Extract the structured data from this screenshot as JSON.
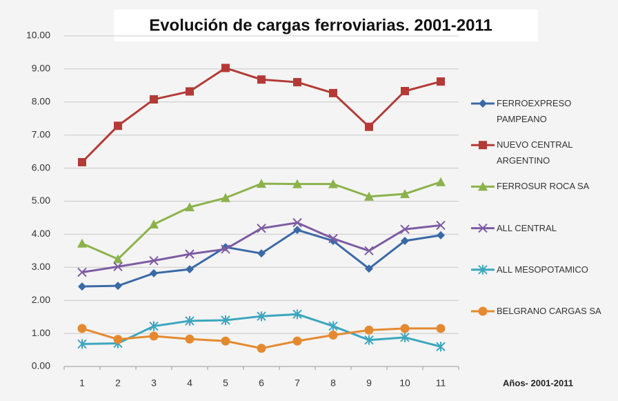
{
  "chart_data": {
    "type": "line",
    "title": "Evolución de cargas ferroviarias. 2001-2011",
    "x_label": "Años- 2001-2011",
    "categories": [
      "1",
      "2",
      "3",
      "4",
      "5",
      "6",
      "7",
      "8",
      "9",
      "10",
      "11"
    ],
    "ylim": [
      0,
      10
    ],
    "yticks": [
      {
        "value": 0,
        "label": "0.00"
      },
      {
        "value": 1,
        "label": "1.00"
      },
      {
        "value": 2,
        "label": "2.00"
      },
      {
        "value": 3,
        "label": "3.00"
      },
      {
        "value": 4,
        "label": "4.00"
      },
      {
        "value": 5,
        "label": "5.00"
      },
      {
        "value": 6,
        "label": "6.00"
      },
      {
        "value": 7,
        "label": "7.00"
      },
      {
        "value": 8,
        "label": "8.00"
      },
      {
        "value": 9,
        "label": "9.00"
      },
      {
        "value": 10,
        "label": "10.00"
      }
    ],
    "grid": true,
    "legend": "right",
    "series": [
      {
        "name": "FERROEXPRESO PAMPEANO",
        "color": "#3b69a6",
        "marker": "diamond",
        "values": [
          2.42,
          2.44,
          2.82,
          2.94,
          3.61,
          3.42,
          4.13,
          3.8,
          2.96,
          3.8,
          3.97
        ]
      },
      {
        "name": "NUEVO CENTRAL ARGENTINO",
        "color": "#b33a36",
        "marker": "square",
        "values": [
          6.18,
          7.28,
          8.08,
          8.32,
          9.03,
          8.68,
          8.6,
          8.27,
          7.25,
          8.33,
          8.62
        ]
      },
      {
        "name": "FERROSUR ROCA SA",
        "color": "#8cb24c",
        "marker": "triangle",
        "values": [
          3.72,
          3.25,
          4.3,
          4.82,
          5.1,
          5.53,
          5.52,
          5.52,
          5.14,
          5.22,
          5.58
        ]
      },
      {
        "name": "ALL CENTRAL",
        "color": "#7d5ba2",
        "marker": "cross",
        "values": [
          2.85,
          3.02,
          3.2,
          3.4,
          3.55,
          4.18,
          4.35,
          3.87,
          3.5,
          4.15,
          4.27
        ]
      },
      {
        "name": "ALL MESOPOTAMICO",
        "color": "#3ba6be",
        "marker": "star",
        "values": [
          0.68,
          0.7,
          1.22,
          1.38,
          1.4,
          1.52,
          1.58,
          1.22,
          0.8,
          0.88,
          0.6
        ]
      },
      {
        "name": "BELGRANO CARGAS SA",
        "color": "#e5892f",
        "marker": "circle",
        "values": [
          1.15,
          0.82,
          0.92,
          0.83,
          0.77,
          0.55,
          0.77,
          0.95,
          1.1,
          1.15,
          1.15
        ]
      }
    ]
  }
}
